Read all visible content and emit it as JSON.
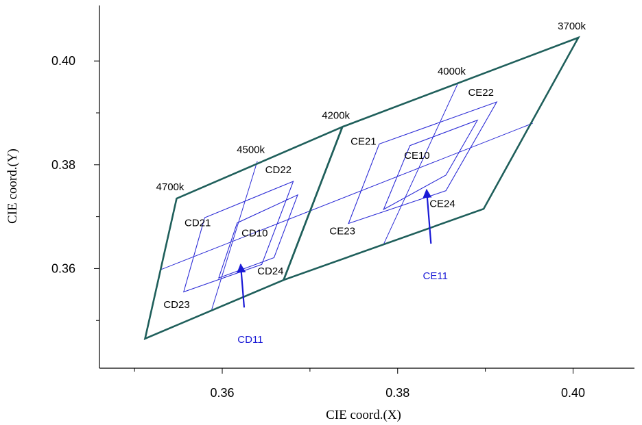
{
  "chart_data": {
    "type": "scatter",
    "title": "",
    "xlabel": "CIE coord.(X)",
    "ylabel": "CIE coord.(Y)",
    "xlim": [
      0.346,
      0.407
    ],
    "ylim": [
      0.3408,
      0.4107
    ],
    "grid": false,
    "x_ticks": [
      {
        "value": 0.36,
        "label": "0.36"
      },
      {
        "value": 0.38,
        "label": "0.38"
      },
      {
        "value": 0.4,
        "label": "0.40"
      }
    ],
    "x_minor_ticks": [
      0.35,
      0.37,
      0.39
    ],
    "y_ticks": [
      {
        "value": 0.36,
        "label": "0.36"
      },
      {
        "value": 0.38,
        "label": "0.38"
      },
      {
        "value": 0.4,
        "label": "0.40"
      }
    ],
    "y_minor_ticks": [
      0.35,
      0.37,
      0.39
    ],
    "colors": {
      "outer": "#1f5f5b",
      "inner": "#2b2bd6",
      "callout": "#1a1ad6",
      "axis": "#000000"
    },
    "outer_regions": [
      {
        "name": "CD",
        "points": [
          [
            0.3512,
            0.3465
          ],
          [
            0.3548,
            0.3735
          ],
          [
            0.3737,
            0.3873
          ],
          [
            0.367,
            0.3578
          ]
        ]
      },
      {
        "name": "CE",
        "points": [
          [
            0.367,
            0.3578
          ],
          [
            0.3737,
            0.3873
          ],
          [
            0.4006,
            0.4045
          ],
          [
            0.3898,
            0.3715
          ]
        ]
      }
    ],
    "outer_vertex_labels": [
      {
        "label": "4700k",
        "x": 0.3548,
        "y": 0.3735
      },
      {
        "label": "4500k",
        "x": 0.364,
        "y": 0.3807
      },
      {
        "label": "4200k",
        "x": 0.3737,
        "y": 0.3873
      },
      {
        "label": "4000k",
        "x": 0.3869,
        "y": 0.3958
      },
      {
        "label": "3700k",
        "x": 0.4006,
        "y": 0.4045
      }
    ],
    "inner_boxes": [
      {
        "name": "CD21-24",
        "points": [
          [
            0.3556,
            0.3555
          ],
          [
            0.358,
            0.3698
          ],
          [
            0.3681,
            0.3768
          ],
          [
            0.3645,
            0.3608
          ]
        ]
      },
      {
        "name": "CD10",
        "points": [
          [
            0.3596,
            0.3582
          ],
          [
            0.3617,
            0.3688
          ],
          [
            0.3686,
            0.3742
          ],
          [
            0.3659,
            0.3621
          ]
        ]
      },
      {
        "name": "CE21-24",
        "points": [
          [
            0.3744,
            0.3687
          ],
          [
            0.3779,
            0.384
          ],
          [
            0.3913,
            0.3921
          ],
          [
            0.3855,
            0.375
          ]
        ]
      },
      {
        "name": "CE10",
        "points": [
          [
            0.3784,
            0.3714
          ],
          [
            0.3814,
            0.3837
          ],
          [
            0.3891,
            0.3886
          ],
          [
            0.3855,
            0.378
          ]
        ]
      }
    ],
    "subdivision_lines": [
      [
        [
          0.353,
          0.3598
        ],
        [
          0.3954,
          0.388
        ]
      ],
      [
        [
          0.3588,
          0.3521
        ],
        [
          0.364,
          0.3807
        ]
      ],
      [
        [
          0.3784,
          0.3647
        ],
        [
          0.3869,
          0.3958
        ]
      ]
    ],
    "region_labels": [
      {
        "label": "CD21",
        "x": 0.3572,
        "y": 0.3687
      },
      {
        "label": "CD22",
        "x": 0.3664,
        "y": 0.3789
      },
      {
        "label": "CD10",
        "x": 0.3637,
        "y": 0.3667
      },
      {
        "label": "CD23",
        "x": 0.3548,
        "y": 0.3529
      },
      {
        "label": "CD24",
        "x": 0.3655,
        "y": 0.3594
      },
      {
        "label": "CE21",
        "x": 0.3761,
        "y": 0.3844
      },
      {
        "label": "CE22",
        "x": 0.3895,
        "y": 0.3938
      },
      {
        "label": "CE10",
        "x": 0.3822,
        "y": 0.3817
      },
      {
        "label": "CE23",
        "x": 0.3737,
        "y": 0.3671
      },
      {
        "label": "CE24",
        "x": 0.3851,
        "y": 0.3724
      }
    ],
    "callouts": [
      {
        "label": "CD11",
        "x": 0.3632,
        "y": 0.3462,
        "arrow_from": [
          0.3625,
          0.3525
        ],
        "arrow_to": [
          0.3621,
          0.3608
        ]
      },
      {
        "label": "CE11",
        "x": 0.3843,
        "y": 0.3585,
        "arrow_from": [
          0.3838,
          0.3648
        ],
        "arrow_to": [
          0.3833,
          0.3752
        ]
      }
    ]
  }
}
